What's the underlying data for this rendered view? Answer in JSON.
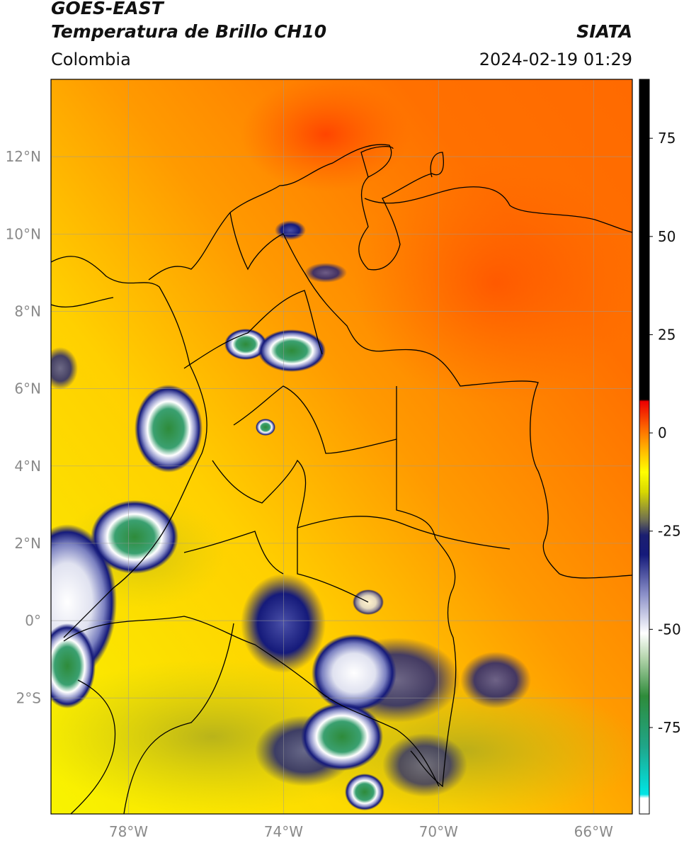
{
  "header": {
    "satellite": "GOES-EAST",
    "product": "Temperatura de Brillo CH10",
    "region": "Colombia",
    "organization": "SIATA",
    "timestamp": "2024-02-19 01:29"
  },
  "map": {
    "lon_range": [
      -80,
      -65
    ],
    "lat_range": [
      -5,
      14
    ],
    "lat_ticks": [
      {
        "value": 12,
        "label": "12°N"
      },
      {
        "value": 10,
        "label": "10°N"
      },
      {
        "value": 8,
        "label": "8°N"
      },
      {
        "value": 6,
        "label": "6°N"
      },
      {
        "value": 4,
        "label": "4°N"
      },
      {
        "value": 2,
        "label": "2°N"
      },
      {
        "value": 0,
        "label": "0°"
      },
      {
        "value": -2,
        "label": "2°S"
      }
    ],
    "lon_ticks": [
      {
        "value": -78,
        "label": "78°W"
      },
      {
        "value": -74,
        "label": "74°W"
      },
      {
        "value": -70,
        "label": "70°W"
      },
      {
        "value": -66,
        "label": "66°W"
      }
    ],
    "grid": true
  },
  "colorbar": {
    "range": [
      -97,
      90
    ],
    "ticks": [
      {
        "value": 75,
        "label": "75"
      },
      {
        "value": 50,
        "label": "50"
      },
      {
        "value": 25,
        "label": "25"
      },
      {
        "value": 0,
        "label": "0"
      },
      {
        "value": -25,
        "label": "-25"
      },
      {
        "value": -50,
        "label": "-50"
      },
      {
        "value": -75,
        "label": "-75"
      }
    ],
    "stops": [
      {
        "value": -97,
        "color": "#ffffff"
      },
      {
        "value": -93,
        "color": "#ffffff"
      },
      {
        "value": -92,
        "color": "#00e5e5"
      },
      {
        "value": -80,
        "color": "#1fa68a"
      },
      {
        "value": -67,
        "color": "#2e8b3a"
      },
      {
        "value": -57,
        "color": "#b8d7b0"
      },
      {
        "value": -51,
        "color": "#ffffff"
      },
      {
        "value": -41,
        "color": "#8a8fc8"
      },
      {
        "value": -31,
        "color": "#151a7a"
      },
      {
        "value": -26,
        "color": "#1b1f70"
      },
      {
        "value": -22,
        "color": "#707050"
      },
      {
        "value": -15,
        "color": "#d8d800"
      },
      {
        "value": -10,
        "color": "#ffff00"
      },
      {
        "value": -5,
        "color": "#ffc000"
      },
      {
        "value": 0,
        "color": "#ff7a00"
      },
      {
        "value": 8,
        "color": "#ee0000"
      },
      {
        "value": 8.5,
        "color": "#000000"
      },
      {
        "value": 90,
        "color": "#000000"
      }
    ]
  }
}
